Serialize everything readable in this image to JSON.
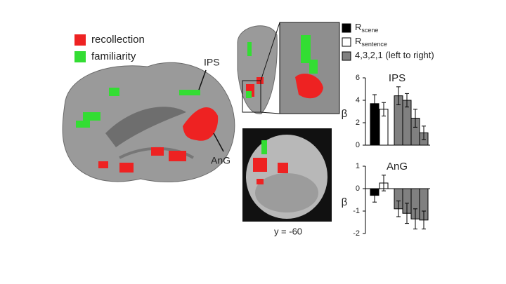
{
  "figure": {
    "brain_legend": [
      {
        "label": "recollection",
        "color": "#ee2222"
      },
      {
        "label": "familiarity",
        "color": "#33dd33"
      }
    ],
    "brain_labels": [
      "IPS",
      "AnG"
    ],
    "slice_label": "y = -60",
    "bar_legend": [
      {
        "label": "R",
        "sub": "scene",
        "color": "#000000"
      },
      {
        "label": "R",
        "sub": "sentence",
        "color": "#ffffff"
      },
      {
        "label": "4,3,2,1 (left to right)",
        "color": "#808080"
      }
    ]
  },
  "chart_data": [
    {
      "type": "bar",
      "title": "IPS",
      "ylabel": "β",
      "values": [
        3.7,
        3.2,
        4.4,
        4.0,
        2.4,
        1.1
      ],
      "errors": [
        0.8,
        0.6,
        0.8,
        0.6,
        0.8,
        0.6
      ],
      "colors": [
        "#000000",
        "#ffffff",
        "#808080",
        "#808080",
        "#808080",
        "#808080"
      ],
      "ylim": [
        0,
        6
      ],
      "yticks": [
        0,
        2,
        4,
        6
      ]
    },
    {
      "type": "bar",
      "title": "AnG",
      "ylabel": "β",
      "values": [
        -0.3,
        0.25,
        -0.9,
        -1.1,
        -1.35,
        -1.4
      ],
      "errors": [
        0.3,
        0.35,
        0.35,
        0.45,
        0.45,
        0.4
      ],
      "colors": [
        "#000000",
        "#ffffff",
        "#808080",
        "#808080",
        "#808080",
        "#808080"
      ],
      "ylim": [
        -2,
        1
      ],
      "yticks": [
        -2,
        -1,
        0,
        1
      ]
    }
  ]
}
